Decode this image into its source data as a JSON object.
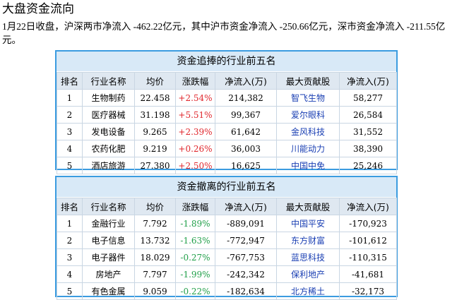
{
  "page": {
    "title": "大盘资金流向",
    "summary": "1月22日收盘，沪深两市净流入 -462.22亿元，其中沪市资金净流入 -250.66亿元，深市资金净流入 -211.55亿元。"
  },
  "columns": [
    "排名",
    "行业名称",
    "均价",
    "涨跌幅",
    "净流入(万)",
    "最大贡献股",
    "净流入(万)"
  ],
  "inflow": {
    "title": "资金追捧的行业前五名",
    "rows": [
      {
        "rank": "1",
        "industry": "生物制药",
        "price": "22.458",
        "change": "+2.54%",
        "net": "214,382",
        "stock": "智飞生物",
        "stock_net": "58,277"
      },
      {
        "rank": "2",
        "industry": "医疗器械",
        "price": "31.198",
        "change": "+5.51%",
        "net": "99,367",
        "stock": "爱尔眼科",
        "stock_net": "26,584"
      },
      {
        "rank": "3",
        "industry": "发电设备",
        "price": "9.265",
        "change": "+2.39%",
        "net": "61,642",
        "stock": "金风科技",
        "stock_net": "31,552"
      },
      {
        "rank": "4",
        "industry": "农药化肥",
        "price": "9.219",
        "change": "+0.26%",
        "net": "36,003",
        "stock": "川能动力",
        "stock_net": "38,390"
      },
      {
        "rank": "5",
        "industry": "酒店旅游",
        "price": "27.380",
        "change": "+2.50%",
        "net": "16,625",
        "stock": "中国中免",
        "stock_net": "25,246"
      }
    ]
  },
  "outflow": {
    "title": "资金撤离的行业前五名",
    "rows": [
      {
        "rank": "1",
        "industry": "金融行业",
        "price": "7.792",
        "change": "-1.89%",
        "net": "-889,091",
        "stock": "中国平安",
        "stock_net": "-170,923"
      },
      {
        "rank": "2",
        "industry": "电子信息",
        "price": "13.732",
        "change": "-1.63%",
        "net": "-772,947",
        "stock": "东方财富",
        "stock_net": "-101,612"
      },
      {
        "rank": "3",
        "industry": "电子器件",
        "price": "18.029",
        "change": "-0.27%",
        "net": "-767,753",
        "stock": "蓝思科技",
        "stock_net": "-110,315"
      },
      {
        "rank": "4",
        "industry": "房地产",
        "price": "7.797",
        "change": "-1.99%",
        "net": "-242,342",
        "stock": "保利地产",
        "stock_net": "-41,681"
      },
      {
        "rank": "5",
        "industry": "有色金属",
        "price": "9.059",
        "change": "-0.22%",
        "net": "-182,634",
        "stock": "北方稀土",
        "stock_net": "-32,173"
      }
    ]
  },
  "colors": {
    "border": "#3b9ce0",
    "header_bg": "#d8e9f7",
    "up": "#e0262c",
    "down": "#22a04a",
    "link": "#1a3fb3"
  }
}
